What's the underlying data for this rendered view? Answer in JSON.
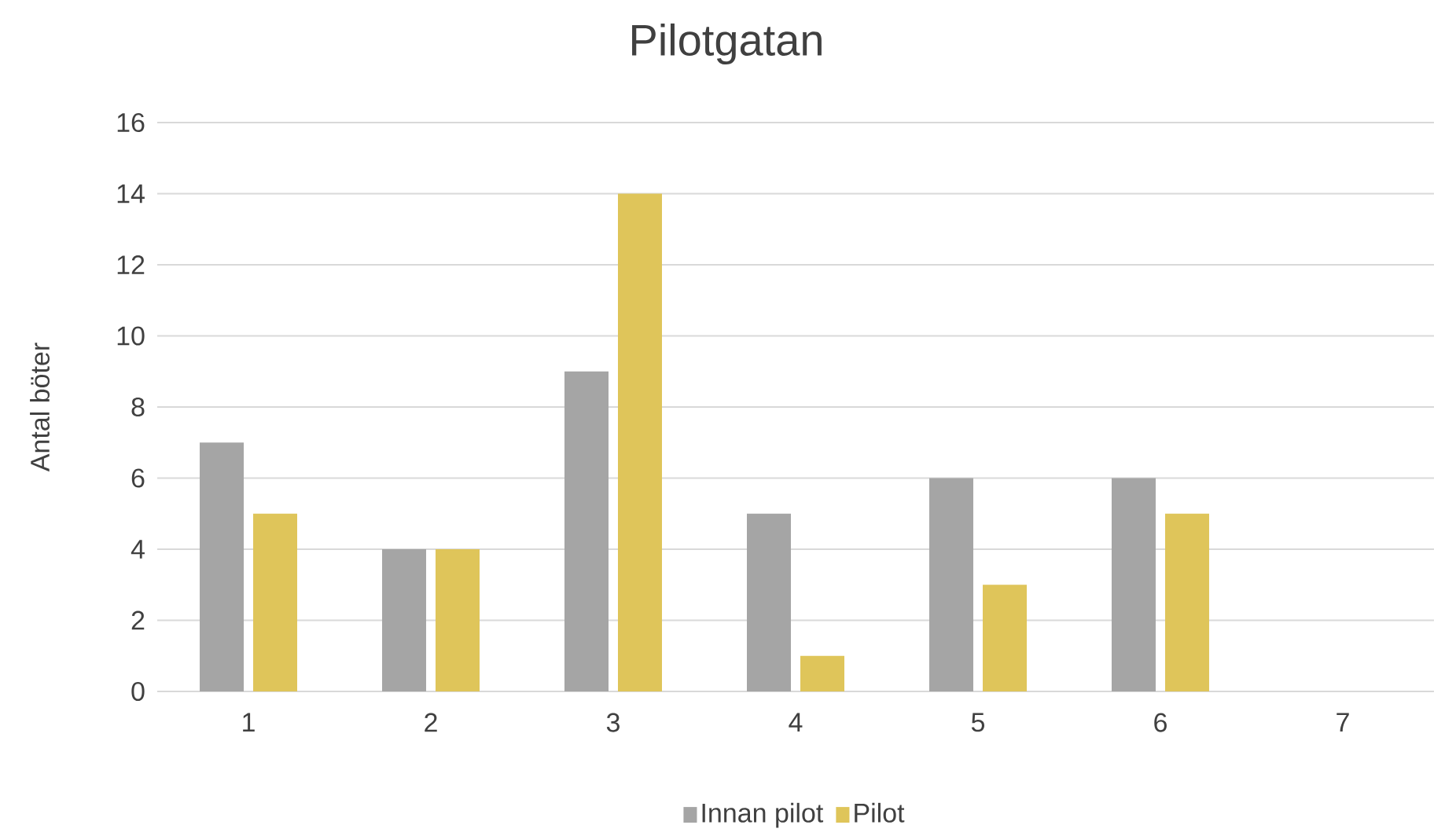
{
  "chart_data": {
    "type": "bar",
    "title": "Pilotgatan",
    "ylabel": "Antal böter",
    "categories": [
      "1",
      "2",
      "3",
      "4",
      "5",
      "6",
      "7"
    ],
    "series": [
      {
        "name": "Innan pilot",
        "color": "#a5a5a5",
        "values": [
          7,
          4,
          9,
          5,
          6,
          6,
          null
        ]
      },
      {
        "name": "Pilot",
        "color": "#dfc55a",
        "values": [
          5,
          4,
          14,
          1,
          3,
          5,
          null
        ]
      }
    ],
    "ylim": [
      0,
      16
    ],
    "yticks": [
      0,
      2,
      4,
      6,
      8,
      10,
      12,
      14,
      16
    ],
    "grid": "y",
    "legend": "bottom"
  }
}
